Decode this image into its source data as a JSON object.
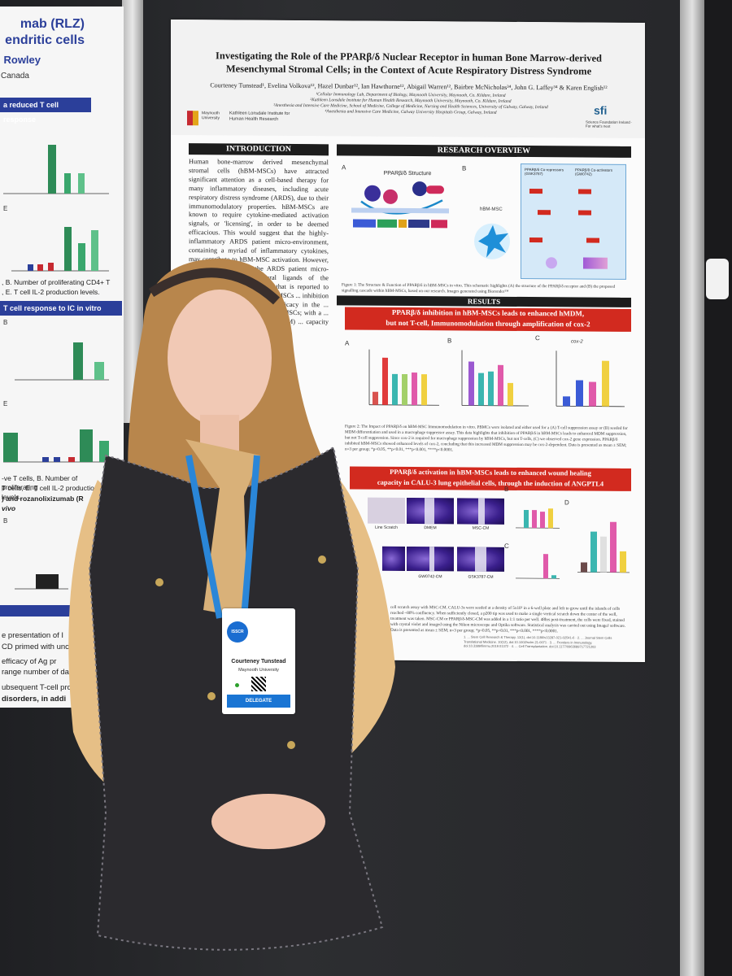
{
  "left_poster": {
    "title_line1": "mab (RLZ)",
    "title_line2": "endritic cells",
    "author": "Rowley",
    "affiliation": "Canada",
    "bar1": "a reduced T cell response",
    "bar2": "T cell response to IC in vitro",
    "text1": ", B. Number of proliferating CD4+ T",
    "text2": ", E. T cell IL-2 production levels.",
    "text3": "-ve T cells, B. Number of proliferating",
    "text4": "T cells, E. T cell IL-2 production levels.",
    "text5": ") and rozanolixizumab (R",
    "text6": "vivo",
    "text7": "e presentation of I",
    "text8": "CD primed with unco",
    "text9": "efficacy of Ag pr",
    "text10": "range number of da",
    "text11": "ubsequent T-cell pro",
    "text12": "disorders, in addi",
    "fig_labels": [
      "E",
      "B",
      "E",
      "B"
    ]
  },
  "poster": {
    "title": "Investigating the Role of the PPARβ/δ Nuclear Receptor in human Bone Marrow-derived Mesenchymal Stromal Cells; in the Context of Acute Respiratory Distress Syndrome",
    "authors": "Courteney Tunstead¹, Evelina Volkova¹², Hazel Dunbar¹², Ian Hawthorne¹², Abigail Warren¹², Bairbre McNicholas³⁴, John G. Laffey³⁴ & Karen English¹²",
    "affil1": "¹Cellular Immunology Lab, Department of Biology, Maynooth University, Maynooth, Co. Kildare, Ireland",
    "affil2": "²Kathleen Lonsdale Institute for Human Health Research, Maynooth University, Maynooth, Co. Kildare, Ireland",
    "affil3": "³Anesthesia and Intensive Care Medicine, School of Medicine, College of Medicine, Nursing and Health Sciences, University of Galway, Galway, Ireland",
    "affil4": "⁴Anesthesia and Intensive Care Medicine, Galway University Hospitals Group, Galway, Ireland",
    "logo_mu": "Maynooth University",
    "logo_kl": "Kathleen Lonsdale Institute for Human Health Research",
    "logo_sfi": "sfi",
    "logo_sfi_text": "Science Foundation Ireland · For what's next",
    "intro_header": "INTRODUCTION",
    "intro_text": "Human bone-marrow derived mesenchymal stromal cells (hBM-MSCs) have attracted significant attention as a cell-based therapy for many inflammatory diseases, including acute respiratory distress syndrome (ARDS), due to their immunomodulatory properties. hBM-MSCs are known to require cytokine-mediated activation signals, or 'licensing', in order to be deemed efficacious. This would suggest that the highly-inflammatory ARDS patient micro-environment, containing a myriad of inflammatory cytokines, may contribute to hBM-MSC activation. However, it is also known that the ARDS patient micro-environment contains natural ligands of the PPARβ/δ receptor; a receptor that is reported to have a negative impact on hBM-MSCs ... inhibition in hBM-MSCs ... therapeutic efficacy in the ... study aims to investigate ... hBM-MSCs; with a ... immunomodulatory capacity (hMDM) ... capacity in human ... (CALU-3).",
    "overview_header": "RESEARCH OVERVIEW",
    "panel_a": "A",
    "panel_b": "B",
    "structure_title": "PPARβ/δ Structure",
    "hbm_msc": "hBM-MSC",
    "inhibitor": "PPARβ/δ Co-repressors (GSK3787)",
    "agonist": "PPARβ/δ Co-activators (GW0742)",
    "fig1_caption": "Figure 1: The Structure & Function of PPARβ/δ in hBM-MSCs in vitro. This schematic highlights (A) the structure of the PPARβ/δ receptor and (B) the proposed signalling cascade within hBM-MSCs, based on our research. Images generated using Biorender™",
    "results_header": "RESULTS",
    "result1_line1": "PPARβ/δ inhibition in hBM-MSCs leads to enhanced hMDM,",
    "result1_line2": "but not T-cell, Immunomodulation through amplification of cox-2",
    "panel_c_label": "C",
    "cox2_label": "cox-2",
    "fig2_caption": "Figure 2: The Impact of PPARβ/δ on hBM-MSC Immunomodulation in vitro. PBMCs were isolated and either used for a (A) T-cell suppression assay or (B) seeded for MDM differentiation and used in a macrophage suppressor assay. This data highlights that inhibition of PPARβ/δ in hBM-MSCs leads to enhanced MDM suppression, but not T-cell suppression. Since cox-2 is required for macrophage suppression by hBM-MSCs, but not T-cells, (C) we observed cox-2 gene expression. PPARβ/δ inhibited hBM-MSCs showed enhanced levels of cox-2, concluding that this increased MDM suppression may be cox-2-dependent. Data is presented as mean ± SEM; n=3 per group; *p<0.05, **p<0.01, ***p<0.001, ****p<0.0001.",
    "result2_line1": "PPARβ/δ activation in hBM-MSCs leads to enhanced wound healing",
    "result2_line2": "capacity in CALU-3 lung epithelial cells, through the induction of ANGPTL4",
    "micro_labels": [
      "DMEM",
      "MSC-CM",
      "GW0742-CM",
      "GSK3787-CM"
    ],
    "line_scratch": "Line Scratch",
    "panel_d_label": "D",
    "fig3_caption": "cell scratch assay with MSC-CM. CALU-3s were seeded at a density of 5x10⁵ in a 6-well plate and left to grow until the islands of cells reached ~80% confluency. When sufficiently closed, a p200 tip was used to make a single vertical scratch down the center of the well, treatment was taken. MSC-CM or PPARβ/δ-MSC-CM was added in a 1:1 ratio per well. 48hrs post-treatment, the cells were fixed, stained with crystal violet and imaged using the Nikon microscope and Optika software. Statistical analysis was carried out using ImageJ software. Data is presented as mean ± SEM; n=3 per group; *p<0.05, **p<0.01, ***p<0.001, ****p<0.0001.",
    "refs": "1. ... Stem Cell Research & Therapy. 12(1), doi:10.1186/s13287-021-02541-6 · 2. ... Journal Stem Cells Translational Medicine. 10(12), doi:10.1002/sctm.21-0071 · 3. ... Frontiers in Immunology. doi:10.3389/fimmu.2019.01372 · 4. ... Cell Transplantation. doi:10.1177/0963689717721203"
  },
  "badge": {
    "logo": "ISSCR",
    "name": "Courteney Tunstead",
    "organization": "Maynooth University",
    "role": "DELEGATE"
  }
}
